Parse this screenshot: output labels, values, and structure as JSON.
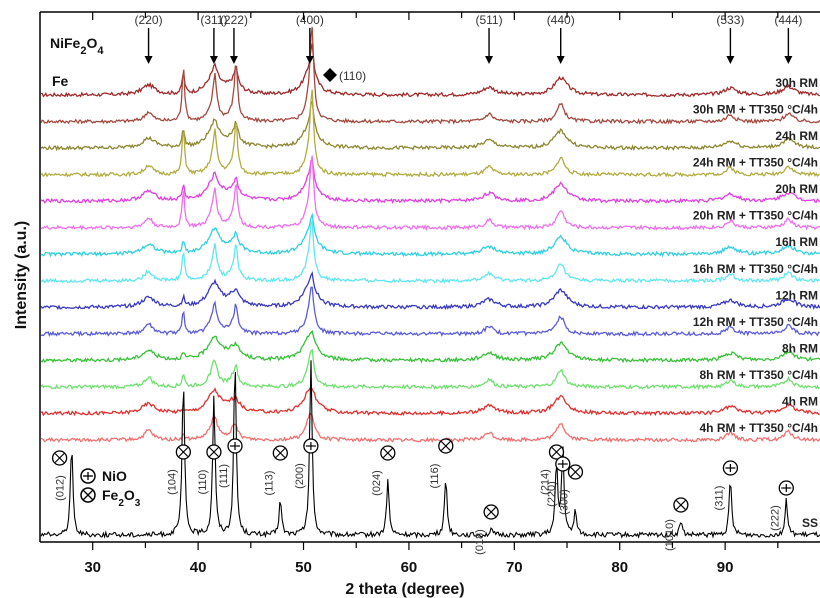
{
  "chart_data": {
    "type": "line",
    "xlabel": "2 theta (degree)",
    "ylabel": "Intensity (a.u.)",
    "xlim": [
      25,
      99
    ],
    "x_ticks": [
      30,
      40,
      50,
      60,
      70,
      80,
      90
    ],
    "y_ticks_shown": false,
    "grid": false,
    "legend": {
      "nife2o4": "NiFe2O4",
      "fe": "Fe",
      "nio": "NiO",
      "fe2o3": "Fe2O3",
      "fe_peak_label": "(110)"
    },
    "nife2o4_reflections": [
      {
        "label": "(220)",
        "x": 35.3
      },
      {
        "label": "(311)",
        "x": 41.5
      },
      {
        "label": "(222)",
        "x": 43.4
      },
      {
        "label": "(400)",
        "x": 50.6
      },
      {
        "label": "(511)",
        "x": 67.6
      },
      {
        "label": "(440)",
        "x": 74.4
      },
      {
        "label": "(533)",
        "x": 90.5
      },
      {
        "label": "(444)",
        "x": 96.0
      }
    ],
    "fe_reflections": [
      {
        "label": "(110)",
        "x": 52.5
      }
    ],
    "series": [
      {
        "name": "30h RM",
        "color": "#9e2a2a",
        "baseline": 0.92
      },
      {
        "name": "30h RM + TT350 °C/4h",
        "color": "#a34a40",
        "baseline": 0.86
      },
      {
        "name": "24h RM",
        "color": "#8c8730",
        "baseline": 0.8
      },
      {
        "name": "24h RM + TT350 °C/4h",
        "color": "#b2ac40",
        "baseline": 0.74
      },
      {
        "name": "20h RM",
        "color": "#e040e0",
        "baseline": 0.68
      },
      {
        "name": "20h RM + TT350 °C/4h",
        "color": "#ee70ee",
        "baseline": 0.62
      },
      {
        "name": "16h RM",
        "color": "#30d0e0",
        "baseline": 0.56
      },
      {
        "name": "16h RM + TT350 °C/4h",
        "color": "#60e6f0",
        "baseline": 0.5
      },
      {
        "name": "12h RM",
        "color": "#3838c0",
        "baseline": 0.44
      },
      {
        "name": "12h RM + TT350 °C/4h",
        "color": "#5c5cd8",
        "baseline": 0.38
      },
      {
        "name": "8h RM",
        "color": "#38c038",
        "baseline": 0.32
      },
      {
        "name": "8h RM + TT350 °C/4h",
        "color": "#70e070",
        "baseline": 0.26
      },
      {
        "name": "4h RM",
        "color": "#e03030",
        "baseline": 0.2
      },
      {
        "name": "4h RM + TT350 °C/4h",
        "color": "#f07070",
        "baseline": 0.14
      },
      {
        "name": "SS",
        "color": "#000000",
        "baseline": 0.0
      }
    ],
    "ss_reflections": [
      {
        "hkl": "(012)",
        "x": 28.0,
        "phase": "Fe2O3"
      },
      {
        "hkl": "(104)",
        "x": 38.6,
        "phase": "Fe2O3"
      },
      {
        "hkl": "(110)",
        "x": 41.5,
        "phase": "Fe2O3"
      },
      {
        "hkl": "(111)",
        "x": 43.5,
        "phase": "NiO"
      },
      {
        "hkl": "(113)",
        "x": 47.8,
        "phase": "Fe2O3"
      },
      {
        "hkl": "(200)",
        "x": 50.7,
        "phase": "NiO"
      },
      {
        "hkl": "(024)",
        "x": 58.0,
        "phase": "Fe2O3"
      },
      {
        "hkl": "(116)",
        "x": 63.5,
        "phase": "Fe2O3"
      },
      {
        "hkl": "(018)",
        "x": 67.8,
        "phase": "Fe2O3"
      },
      {
        "hkl": "(214)",
        "x": 74.0,
        "phase": "Fe2O3"
      },
      {
        "hkl": "(220)",
        "x": 74.6,
        "phase": "NiO"
      },
      {
        "hkl": "(300)",
        "x": 75.8,
        "phase": "Fe2O3"
      },
      {
        "hkl": "(1010)",
        "x": 85.8,
        "phase": "Fe2O3"
      },
      {
        "hkl": "(311)",
        "x": 90.5,
        "phase": "NiO"
      },
      {
        "hkl": "(222)",
        "x": 95.8,
        "phase": "NiO"
      }
    ]
  }
}
